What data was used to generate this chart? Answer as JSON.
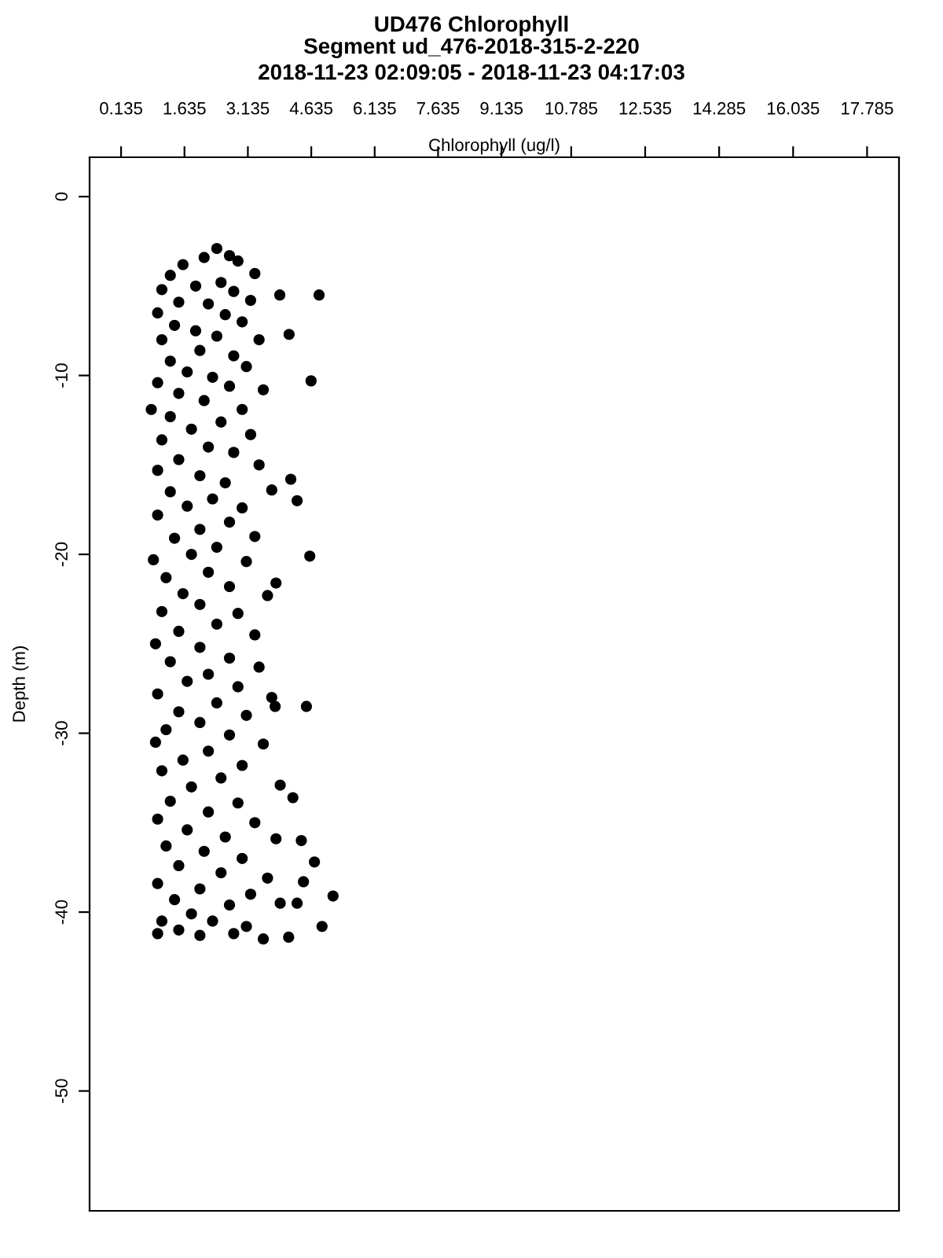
{
  "chart_data": {
    "type": "scatter",
    "title": "UD476 Chlorophyll",
    "subtitle": "Segment ud_476-2018-315-2-220\n2018-11-23 02:09:05 - 2018-11-23 04:17:03",
    "xlabel": "Chlorophyll (ug/l)",
    "ylabel": "Depth (m)",
    "xlim": [
      -0.61,
      18.54
    ],
    "ylim": [
      -56.7,
      2.2
    ],
    "xticks": [
      0.135,
      1.635,
      3.135,
      4.635,
      6.135,
      7.635,
      9.135,
      10.785,
      12.535,
      14.285,
      16.035,
      17.785
    ],
    "yticks": [
      0,
      -10,
      -20,
      -30,
      -40,
      -50
    ],
    "marker": "circle",
    "grid": false,
    "legend": false,
    "series": [
      {
        "color": "#000000",
        "x": [
          2.4,
          2.1,
          2.7,
          2.9,
          1.6,
          3.3,
          1.3,
          2.5,
          1.1,
          1.9,
          2.8,
          3.2,
          1.5,
          2.2,
          1.0,
          2.6,
          3.0,
          1.4,
          1.9,
          2.4,
          1.1,
          3.4,
          2.0,
          2.8,
          1.3,
          3.1,
          1.7,
          2.3,
          1.0,
          2.7,
          3.5,
          1.5,
          2.1,
          0.85,
          3.0,
          1.3,
          2.5,
          1.8,
          3.2,
          1.1,
          2.2,
          2.8,
          1.5,
          3.4,
          1.0,
          2.0,
          2.6,
          3.7,
          1.3,
          2.3,
          1.7,
          3.0,
          1.0,
          2.7,
          2.0,
          3.3,
          1.4,
          2.4,
          0.9,
          1.8,
          3.1,
          2.2,
          1.2,
          3.8,
          2.7,
          1.6,
          3.6,
          2.0,
          1.1,
          2.9,
          2.4,
          1.5,
          3.3,
          0.95,
          2.0,
          2.7,
          1.3,
          3.4,
          2.2,
          1.7,
          2.9,
          1.0,
          3.7,
          2.4,
          1.5,
          3.1,
          2.0,
          1.2,
          2.7,
          0.95,
          3.5,
          2.2,
          1.6,
          3.0,
          1.1,
          2.5,
          3.9,
          1.8,
          4.2,
          1.3,
          2.9,
          2.2,
          1.0,
          3.3,
          1.7,
          2.6,
          3.8,
          1.2,
          2.1,
          4.4,
          3.0,
          1.5,
          2.5,
          3.6,
          1.0,
          2.0,
          3.2,
          1.4,
          2.7,
          3.9,
          1.8,
          1.1,
          2.3,
          3.1,
          1.5,
          2.0,
          2.8,
          1.0,
          3.5,
          4.1,
          4.82,
          3.89,
          4.11,
          4.63,
          4.15,
          4.3,
          4.6,
          4.52,
          3.78,
          4.71,
          5.15,
          4.89,
          4.3,
          4.45
        ],
        "values": [
          -2.9,
          -3.4,
          -3.3,
          -3.6,
          -3.8,
          -4.3,
          -4.4,
          -4.8,
          -5.2,
          -5.0,
          -5.3,
          -5.8,
          -5.9,
          -6.0,
          -6.5,
          -6.6,
          -7.0,
          -7.2,
          -7.5,
          -7.8,
          -8.0,
          -8.0,
          -8.6,
          -8.9,
          -9.2,
          -9.5,
          -9.8,
          -10.1,
          -10.4,
          -10.6,
          -10.8,
          -11.0,
          -11.4,
          -11.9,
          -11.9,
          -12.3,
          -12.6,
          -13.0,
          -13.3,
          -13.6,
          -14.0,
          -14.3,
          -14.7,
          -15.0,
          -15.3,
          -15.6,
          -16.0,
          -16.4,
          -16.5,
          -16.9,
          -17.3,
          -17.4,
          -17.8,
          -18.2,
          -18.6,
          -19.0,
          -19.1,
          -19.6,
          -20.3,
          -20.0,
          -20.4,
          -21.0,
          -21.3,
          -21.6,
          -21.8,
          -22.2,
          -22.3,
          -22.8,
          -23.2,
          -23.3,
          -23.9,
          -24.3,
          -24.5,
          -25.0,
          -25.2,
          -25.8,
          -26.0,
          -26.3,
          -26.7,
          -27.1,
          -27.4,
          -27.8,
          -28.0,
          -28.3,
          -28.8,
          -29.0,
          -29.4,
          -29.8,
          -30.1,
          -30.5,
          -30.6,
          -31.0,
          -31.5,
          -31.8,
          -32.1,
          -32.5,
          -32.9,
          -33.0,
          -33.6,
          -33.8,
          -33.9,
          -34.4,
          -34.8,
          -35.0,
          -35.4,
          -35.8,
          -35.9,
          -36.3,
          -36.6,
          -36.0,
          -37.0,
          -37.4,
          -37.8,
          -38.1,
          -38.4,
          -38.7,
          -39.0,
          -39.3,
          -39.6,
          -39.5,
          -40.1,
          -40.5,
          -40.5,
          -40.8,
          -41.0,
          -41.3,
          -41.2,
          -41.2,
          -41.5,
          -41.4,
          -5.5,
          -5.5,
          -7.7,
          -10.3,
          -15.8,
          -17.0,
          -20.1,
          -28.5,
          -28.5,
          -37.2,
          -39.1,
          -40.8,
          -39.5,
          -38.3
        ]
      }
    ]
  }
}
